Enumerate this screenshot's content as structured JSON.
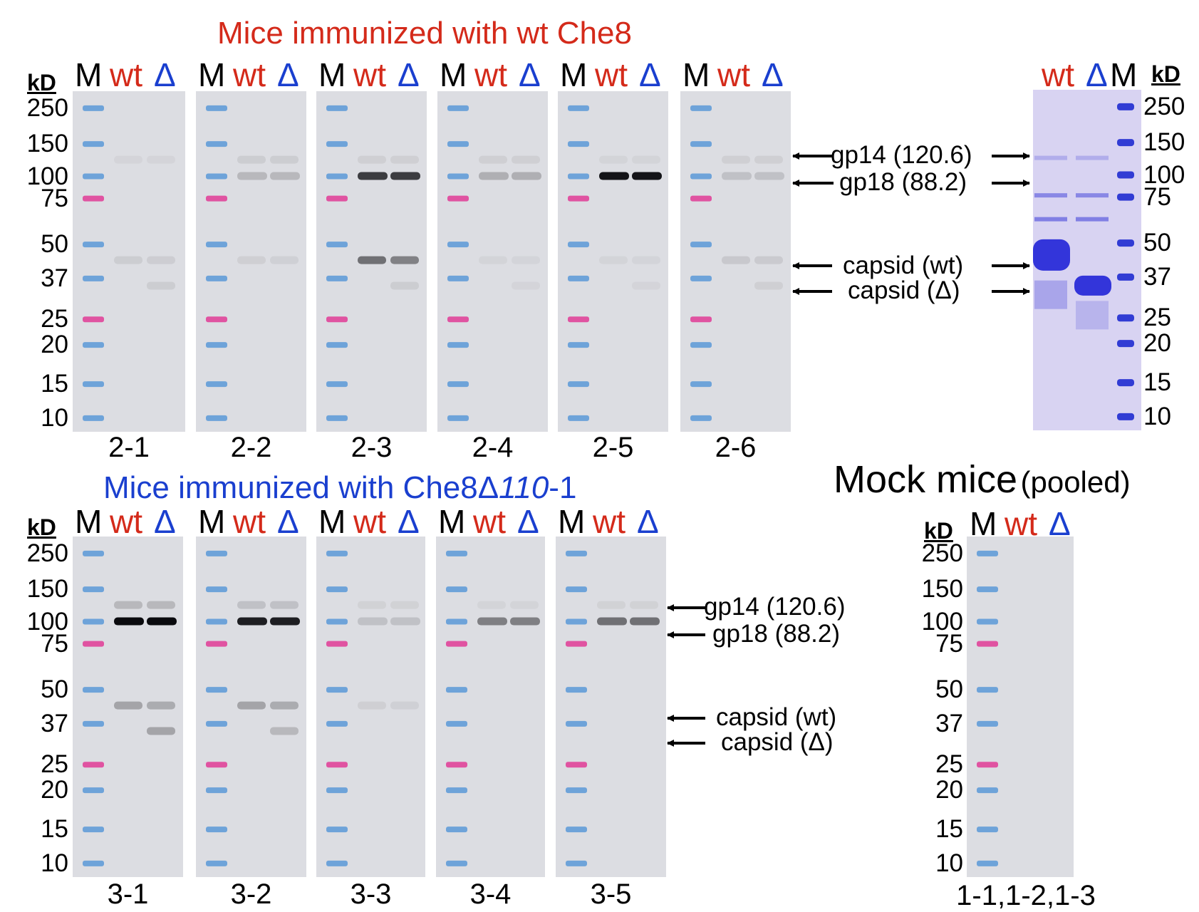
{
  "titles": {
    "top": "Mice immunized with wt Che8",
    "bottom_prefix": "Mice immunized with Che8Δ",
    "bottom_italic": "110",
    "bottom_suffix": "-1",
    "mock": "Mock mice",
    "mock_sub": "(pooled)"
  },
  "lane_labels": {
    "M": "M",
    "wt": "wt",
    "delta": "Δ"
  },
  "kd_label": "kD",
  "mw_markers": [
    "250",
    "150",
    "100",
    "75",
    "50",
    "37",
    "25",
    "20",
    "15",
    "10"
  ],
  "top_panels": [
    "2-1",
    "2-2",
    "2-3",
    "2-4",
    "2-5",
    "2-6"
  ],
  "bottom_panels": [
    "3-1",
    "3-2",
    "3-3",
    "3-4",
    "3-5"
  ],
  "mock_panel": "1-1,1-2,1-3",
  "annotations": {
    "gp14": "gp14 (120.6)",
    "gp18": "gp18 (88.2)",
    "capsid_wt": "capsid (wt)",
    "capsid_delta": "capsid (Δ)"
  },
  "colors": {
    "wt": "#d42a1a",
    "delta": "#1a3fcf",
    "ladder_blue": "#4a8fd6",
    "ladder_pink": "#e0449a",
    "coomassie": "#3a3bd8"
  },
  "band_intensity": {
    "top": [
      {
        "gp14": 0.05,
        "gp18": 0.0,
        "capsid": 0.12,
        "capsid_d": 0.12
      },
      {
        "gp14": 0.12,
        "gp18": 0.25,
        "capsid": 0.1,
        "capsid_d": 0.0
      },
      {
        "gp14": 0.1,
        "gp18": 0.75,
        "capsid": 0.55,
        "capsid_d": 0.12
      },
      {
        "gp14": 0.1,
        "gp18": 0.3,
        "capsid": 0.06,
        "capsid_d": 0.05
      },
      {
        "gp14": 0.06,
        "gp18": 0.95,
        "capsid": 0.06,
        "capsid_d": 0.05
      },
      {
        "gp14": 0.1,
        "gp18": 0.2,
        "capsid": 0.15,
        "capsid_d": 0.1
      }
    ],
    "bottom": [
      {
        "gp14": 0.25,
        "gp18": 1.0,
        "capsid": 0.35,
        "capsid_d": 0.35
      },
      {
        "gp14": 0.2,
        "gp18": 0.9,
        "capsid": 0.35,
        "capsid_d": 0.25
      },
      {
        "gp14": 0.08,
        "gp18": 0.2,
        "capsid": 0.1,
        "capsid_d": 0.0
      },
      {
        "gp14": 0.06,
        "gp18": 0.5,
        "capsid": 0.0,
        "capsid_d": 0.0
      },
      {
        "gp14": 0.08,
        "gp18": 0.55,
        "capsid": 0.0,
        "capsid_d": 0.0
      }
    ]
  }
}
